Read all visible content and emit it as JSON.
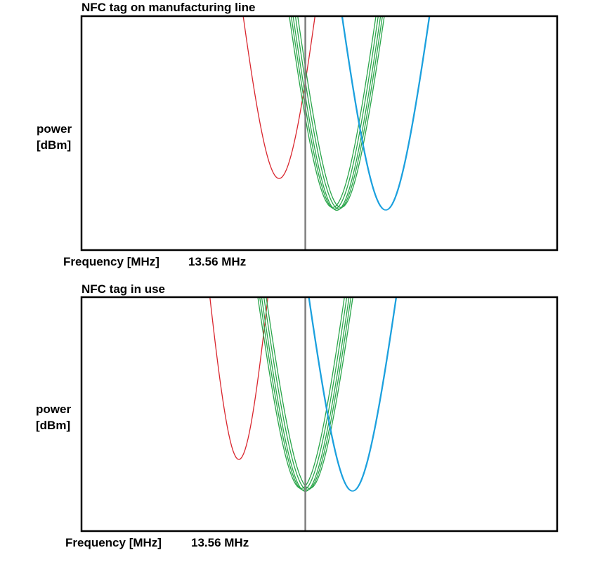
{
  "chart_data": [
    {
      "type": "line",
      "title": "NFC tag on manufacturing line",
      "ylabel_lines": [
        "power",
        "[dBm]"
      ],
      "xlabel": "Frequency [MHz]",
      "marker": {
        "x": 13.56,
        "label": "13.56 MHz"
      },
      "xlim": [
        12.28,
        15.0
      ],
      "ylim": [
        0,
        1
      ],
      "grid": false,
      "legend": "none",
      "series": [
        {
          "color": "#d9262e",
          "strands": 1,
          "spread": 0.0,
          "center": 13.41,
          "min": 0.306,
          "width": 0.52
        },
        {
          "color": "#2aa54a",
          "strands": 5,
          "spread": 0.012,
          "center": 13.74,
          "min": 0.17,
          "width": 0.565
        },
        {
          "color": "#1ba0de",
          "strands": 2,
          "spread": 0.004,
          "center": 14.02,
          "min": 0.17,
          "width": 0.565
        }
      ]
    },
    {
      "type": "line",
      "title": "NFC tag in use",
      "ylabel_lines": [
        "power",
        "[dBm]"
      ],
      "xlabel": "Frequency [MHz]",
      "marker": {
        "x": 13.56,
        "label": "13.56 MHz"
      },
      "xlim": [
        12.28,
        15.0
      ],
      "ylim": [
        0,
        1
      ],
      "grid": false,
      "legend": "none",
      "series": [
        {
          "color": "#d9262e",
          "strands": 1,
          "spread": 0.0,
          "center": 13.18,
          "min": 0.306,
          "width": 0.42
        },
        {
          "color": "#2aa54a",
          "strands": 5,
          "spread": 0.012,
          "center": 13.56,
          "min": 0.17,
          "width": 0.565
        },
        {
          "color": "#1ba0de",
          "strands": 2,
          "spread": 0.004,
          "center": 13.83,
          "min": 0.17,
          "width": 0.565
        }
      ]
    }
  ]
}
